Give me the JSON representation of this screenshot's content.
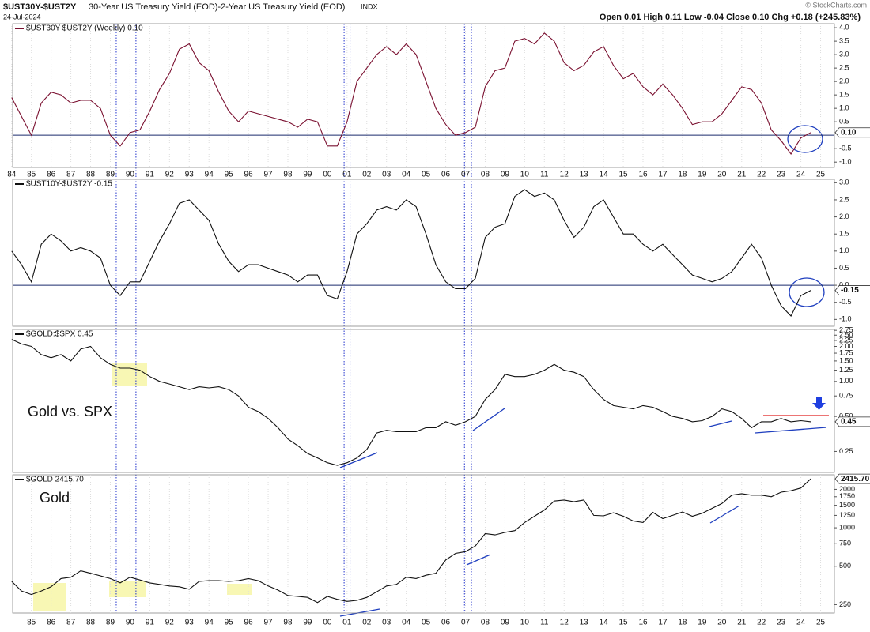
{
  "header": {
    "symbol": "$UST30Y-$UST2Y",
    "description": "30-Year US Treasury Yield (EOD)-2-Year US Treasury Yield (EOD)",
    "exchange": "INDX",
    "date": "24-Jul-2024",
    "quote": "Open 0.01 High 0.11 Low -0.04 Close 0.10 Chg +0.18 (+245.83%)",
    "credit": "© StockCharts.com"
  },
  "highlight_dates": [
    1989.3,
    1990.3,
    2000.85,
    2001.15,
    2006.95,
    2007.3
  ],
  "chart_data": [
    {
      "type": "line",
      "title": "$UST30Y-$UST2Y (Weekly) 0.10",
      "color": "#7a1030",
      "reference_line": 0,
      "last_value_label": "0.10",
      "log_scale": false,
      "grid": true,
      "x": [
        1984,
        1984.5,
        1985,
        1985.5,
        1986,
        1986.5,
        1987,
        1987.5,
        1988,
        1988.5,
        1989,
        1989.5,
        1990,
        1990.5,
        1991,
        1991.5,
        1992,
        1992.5,
        1993,
        1993.5,
        1994,
        1994.5,
        1995,
        1995.5,
        1996,
        1996.5,
        1997,
        1997.5,
        1998,
        1998.5,
        1999,
        1999.5,
        2000,
        2000.5,
        2001,
        2001.5,
        2002,
        2002.5,
        2003,
        2003.5,
        2004,
        2004.5,
        2005,
        2005.5,
        2006,
        2006.5,
        2007,
        2007.5,
        2008,
        2008.5,
        2009,
        2009.5,
        2010,
        2010.5,
        2011,
        2011.5,
        2012,
        2012.5,
        2013,
        2013.5,
        2014,
        2014.5,
        2015,
        2015.5,
        2016,
        2016.5,
        2017,
        2017.5,
        2018,
        2018.5,
        2019,
        2019.5,
        2020,
        2020.5,
        2021,
        2021.5,
        2022,
        2022.5,
        2023,
        2023.5,
        2024,
        2024.5
      ],
      "values": [
        1.4,
        0.7,
        0.0,
        1.2,
        1.6,
        1.5,
        1.2,
        1.3,
        1.3,
        1.0,
        0.0,
        -0.4,
        0.1,
        0.2,
        0.9,
        1.7,
        2.3,
        3.2,
        3.4,
        2.7,
        2.4,
        1.6,
        0.9,
        0.5,
        0.9,
        0.8,
        0.7,
        0.6,
        0.5,
        0.3,
        0.6,
        0.5,
        -0.4,
        -0.4,
        0.5,
        2.0,
        2.5,
        3.0,
        3.3,
        3.0,
        3.4,
        3.0,
        2.0,
        1.0,
        0.4,
        0.0,
        0.1,
        0.3,
        1.8,
        2.4,
        2.5,
        3.5,
        3.6,
        3.4,
        3.8,
        3.5,
        2.7,
        2.4,
        2.6,
        3.1,
        3.3,
        2.6,
        2.1,
        2.3,
        1.8,
        1.5,
        1.9,
        1.5,
        1.0,
        0.4,
        0.5,
        0.5,
        0.8,
        1.3,
        1.8,
        1.7,
        1.2,
        0.2,
        -0.2,
        -0.7,
        -0.1,
        0.1
      ],
      "xlim": [
        1984.05,
        2025.7
      ],
      "ylim": [
        -1.2,
        4.15
      ],
      "yticks": [
        {
          "value": 4,
          "label": "4.0"
        },
        3.5,
        {
          "value": 3,
          "label": "3.0"
        },
        2.5,
        {
          "value": 2,
          "label": "2.0"
        },
        1.5,
        {
          "value": 1,
          "label": "1.0"
        },
        0.5,
        -0.5,
        {
          "value": -1,
          "label": "-1.0"
        }
      ],
      "xticks": [
        {
          "value": 1984,
          "label": "84"
        },
        {
          "value": 1985,
          "label": "85"
        },
        {
          "value": 1986,
          "label": "86"
        },
        {
          "value": 1987,
          "label": "87"
        },
        {
          "value": 1988,
          "label": "88"
        },
        {
          "value": 1989,
          "label": "89"
        },
        {
          "value": 1990,
          "label": "90"
        },
        {
          "value": 1991,
          "label": "91"
        },
        {
          "value": 1992,
          "label": "92"
        },
        {
          "value": 1993,
          "label": "93"
        },
        {
          "value": 1994,
          "label": "94"
        },
        {
          "value": 1995,
          "label": "95"
        },
        {
          "value": 1996,
          "label": "96"
        },
        {
          "value": 1997,
          "label": "97"
        },
        {
          "value": 1998,
          "label": "98"
        },
        {
          "value": 1999,
          "label": "99"
        },
        {
          "value": 2000,
          "label": "00"
        },
        {
          "value": 2001,
          "label": "01"
        },
        {
          "value": 2002,
          "label": "02"
        },
        {
          "value": 2003,
          "label": "03"
        },
        {
          "value": 2004,
          "label": "04"
        },
        {
          "value": 2005,
          "label": "05"
        },
        {
          "value": 2006,
          "label": "06"
        },
        {
          "value": 2007,
          "label": "07"
        },
        {
          "value": 2008,
          "label": "08"
        },
        {
          "value": 2009,
          "label": "09"
        },
        {
          "value": 2010,
          "label": "10"
        },
        {
          "value": 2011,
          "label": "11"
        },
        {
          "value": 2012,
          "label": "12"
        },
        {
          "value": 2013,
          "label": "13"
        },
        {
          "value": 2014,
          "label": "14"
        },
        {
          "value": 2015,
          "label": "15"
        },
        {
          "value": 2016,
          "label": "16"
        },
        {
          "value": 2017,
          "label": "17"
        },
        {
          "value": 2018,
          "label": "18"
        },
        {
          "value": 2019,
          "label": "19"
        },
        {
          "value": 2020,
          "label": "20"
        },
        {
          "value": 2021,
          "label": "21"
        },
        {
          "value": 2022,
          "label": "22"
        },
        {
          "value": 2023,
          "label": "23"
        },
        {
          "value": 2024,
          "label": "24"
        },
        {
          "value": 2025,
          "label": "25"
        }
      ]
    },
    {
      "type": "line",
      "title": "$UST10Y-$UST2Y -0.15",
      "color": "#111111",
      "reference_line": 0,
      "last_value_label": "-0.15",
      "log_scale": false,
      "x": [
        1984,
        1984.5,
        1985,
        1985.5,
        1986,
        1986.5,
        1987,
        1987.5,
        1988,
        1988.5,
        1989,
        1989.5,
        1990,
        1990.5,
        1991,
        1991.5,
        1992,
        1992.5,
        1993,
        1993.5,
        1994,
        1994.5,
        1995,
        1995.5,
        1996,
        1996.5,
        1997,
        1997.5,
        1998,
        1998.5,
        1999,
        1999.5,
        2000,
        2000.5,
        2001,
        2001.5,
        2002,
        2002.5,
        2003,
        2003.5,
        2004,
        2004.5,
        2005,
        2005.5,
        2006,
        2006.5,
        2007,
        2007.5,
        2008,
        2008.5,
        2009,
        2009.5,
        2010,
        2010.5,
        2011,
        2011.5,
        2012,
        2012.5,
        2013,
        2013.5,
        2014,
        2014.5,
        2015,
        2015.5,
        2016,
        2016.5,
        2017,
        2017.5,
        2018,
        2018.5,
        2019,
        2019.5,
        2020,
        2020.5,
        2021,
        2021.5,
        2022,
        2022.5,
        2023,
        2023.5,
        2024,
        2024.5
      ],
      "values": [
        1.0,
        0.6,
        0.1,
        1.2,
        1.5,
        1.3,
        1.0,
        1.1,
        1.0,
        0.8,
        0.0,
        -0.3,
        0.1,
        0.1,
        0.7,
        1.3,
        1.8,
        2.4,
        2.5,
        2.2,
        1.9,
        1.2,
        0.7,
        0.4,
        0.6,
        0.6,
        0.5,
        0.4,
        0.3,
        0.1,
        0.3,
        0.3,
        -0.3,
        -0.4,
        0.4,
        1.5,
        1.8,
        2.2,
        2.3,
        2.2,
        2.5,
        2.3,
        1.5,
        0.6,
        0.1,
        -0.1,
        -0.1,
        0.2,
        1.4,
        1.7,
        1.8,
        2.6,
        2.8,
        2.6,
        2.7,
        2.5,
        1.9,
        1.4,
        1.7,
        2.3,
        2.5,
        2.0,
        1.5,
        1.5,
        1.2,
        1.0,
        1.2,
        0.9,
        0.6,
        0.3,
        0.2,
        0.1,
        0.2,
        0.4,
        0.8,
        1.2,
        0.8,
        0.0,
        -0.6,
        -0.9,
        -0.3,
        -0.15
      ],
      "xlim": [
        1984.05,
        2025.7
      ],
      "ylim": [
        -1.2,
        3.1
      ],
      "yticks": [
        {
          "value": 3,
          "label": "3.0"
        },
        2.5,
        {
          "value": 2,
          "label": "2.0"
        },
        1.5,
        {
          "value": 1,
          "label": "1.0"
        },
        0.5,
        {
          "value": 0,
          "label": "0.0"
        },
        -0.5,
        {
          "value": -1,
          "label": "-1.0"
        }
      ]
    },
    {
      "type": "line",
      "title": "$GOLD:$SPX 0.45",
      "annotation": "Gold vs. SPX",
      "color": "#111111",
      "last_value_label": "0.45",
      "log_scale": true,
      "x": [
        1984,
        1984.5,
        1985,
        1985.5,
        1986,
        1986.5,
        1987,
        1987.5,
        1988,
        1988.5,
        1989,
        1989.5,
        1990,
        1990.5,
        1991,
        1991.5,
        1992,
        1992.5,
        1993,
        1993.5,
        1994,
        1994.5,
        1995,
        1995.5,
        1996,
        1996.5,
        1997,
        1997.5,
        1998,
        1998.5,
        1999,
        1999.5,
        2000,
        2000.5,
        2001,
        2001.5,
        2002,
        2002.5,
        2003,
        2003.5,
        2004,
        2004.5,
        2005,
        2005.5,
        2006,
        2006.5,
        2007,
        2007.5,
        2008,
        2008.5,
        2009,
        2009.5,
        2010,
        2010.5,
        2011,
        2011.5,
        2012,
        2012.5,
        2013,
        2013.5,
        2014,
        2014.5,
        2015,
        2015.5,
        2016,
        2016.5,
        2017,
        2017.5,
        2018,
        2018.5,
        2019,
        2019.5,
        2020,
        2020.5,
        2021,
        2021.5,
        2022,
        2022.5,
        2023,
        2023.5,
        2024,
        2024.5
      ],
      "values": [
        2.3,
        2.1,
        2.0,
        1.7,
        1.6,
        1.7,
        1.5,
        1.9,
        2.0,
        1.6,
        1.4,
        1.3,
        1.3,
        1.25,
        1.1,
        1.0,
        0.95,
        0.9,
        0.85,
        0.9,
        0.88,
        0.9,
        0.85,
        0.75,
        0.6,
        0.55,
        0.48,
        0.4,
        0.32,
        0.28,
        0.24,
        0.22,
        0.2,
        0.19,
        0.2,
        0.22,
        0.26,
        0.36,
        0.38,
        0.37,
        0.37,
        0.37,
        0.4,
        0.4,
        0.45,
        0.42,
        0.45,
        0.5,
        0.7,
        0.85,
        1.15,
        1.1,
        1.1,
        1.15,
        1.25,
        1.4,
        1.25,
        1.2,
        1.1,
        0.85,
        0.7,
        0.62,
        0.6,
        0.58,
        0.62,
        0.6,
        0.55,
        0.5,
        0.48,
        0.45,
        0.46,
        0.5,
        0.58,
        0.55,
        0.48,
        0.4,
        0.45,
        0.45,
        0.48,
        0.45,
        0.46,
        0.45
      ],
      "xlim": [
        1984.05,
        2025.7
      ],
      "ylim": [
        0.165,
        2.8
      ],
      "yticks": [
        2.75,
        {
          "value": 2.5,
          "label": "2.50"
        },
        2.25,
        {
          "value": 2,
          "label": "2.00"
        },
        1.75,
        {
          "value": 1.5,
          "label": "1.50"
        },
        1.25,
        {
          "value": 1,
          "label": "1.00"
        },
        0.75,
        {
          "value": 0.5,
          "label": "0.50"
        },
        0.25
      ]
    },
    {
      "type": "line",
      "title": "$GOLD 2415.70",
      "annotation": "Gold",
      "color": "#111111",
      "last_value_label": "2415.70",
      "log_scale": true,
      "grid": true,
      "x": [
        1984,
        1984.5,
        1985,
        1985.5,
        1986,
        1986.5,
        1987,
        1987.5,
        1988,
        1988.5,
        1989,
        1989.5,
        1990,
        1990.5,
        1991,
        1991.5,
        1992,
        1992.5,
        1993,
        1993.5,
        1994,
        1994.5,
        1995,
        1995.5,
        1996,
        1996.5,
        1997,
        1997.5,
        1998,
        1998.5,
        1999,
        1999.5,
        2000,
        2000.5,
        2001,
        2001.5,
        2002,
        2002.5,
        2003,
        2003.5,
        2004,
        2004.5,
        2005,
        2005.5,
        2006,
        2006.5,
        2007,
        2007.5,
        2008,
        2008.5,
        2009,
        2009.5,
        2010,
        2010.5,
        2011,
        2011.5,
        2012,
        2012.5,
        2013,
        2013.5,
        2014,
        2014.5,
        2015,
        2015.5,
        2016,
        2016.5,
        2017,
        2017.5,
        2018,
        2018.5,
        2019,
        2019.5,
        2020,
        2020.5,
        2021,
        2021.5,
        2022,
        2022.5,
        2023,
        2023.5,
        2024,
        2024.5
      ],
      "values": [
        380,
        320,
        300,
        320,
        345,
        400,
        410,
        460,
        440,
        420,
        400,
        370,
        410,
        390,
        370,
        360,
        350,
        345,
        330,
        380,
        385,
        385,
        380,
        385,
        400,
        385,
        350,
        325,
        295,
        290,
        285,
        260,
        290,
        275,
        265,
        270,
        285,
        315,
        350,
        360,
        410,
        400,
        425,
        440,
        560,
        630,
        650,
        720,
        900,
        880,
        920,
        950,
        1100,
        1230,
        1380,
        1620,
        1650,
        1600,
        1650,
        1250,
        1240,
        1310,
        1230,
        1130,
        1100,
        1320,
        1180,
        1250,
        1330,
        1230,
        1300,
        1420,
        1550,
        1800,
        1850,
        1800,
        1800,
        1750,
        1900,
        1950,
        2050,
        2415.7
      ],
      "xlim": [
        1984.05,
        2025.7
      ],
      "ylim": [
        215,
        2600
      ],
      "yticks": [
        2000,
        1750,
        1500,
        1250,
        1000,
        750,
        500,
        250
      ],
      "xticks": [
        {
          "value": 1985,
          "label": "85"
        },
        {
          "value": 1986,
          "label": "86"
        },
        {
          "value": 1987,
          "label": "87"
        },
        {
          "value": 1988,
          "label": "88"
        },
        {
          "value": 1989,
          "label": "89"
        },
        {
          "value": 1990,
          "label": "90"
        },
        {
          "value": 1991,
          "label": "91"
        },
        {
          "value": 1992,
          "label": "92"
        },
        {
          "value": 1993,
          "label": "93"
        },
        {
          "value": 1994,
          "label": "94"
        },
        {
          "value": 1995,
          "label": "95"
        },
        {
          "value": 1996,
          "label": "96"
        },
        {
          "value": 1997,
          "label": "97"
        },
        {
          "value": 1998,
          "label": "98"
        },
        {
          "value": 1999,
          "label": "99"
        },
        {
          "value": 2000,
          "label": "00"
        },
        {
          "value": 2001,
          "label": "01"
        },
        {
          "value": 2002,
          "label": "02"
        },
        {
          "value": 2003,
          "label": "03"
        },
        {
          "value": 2004,
          "label": "04"
        },
        {
          "value": 2005,
          "label": "05"
        },
        {
          "value": 2006,
          "label": "06"
        },
        {
          "value": 2007,
          "label": "07"
        },
        {
          "value": 2008,
          "label": "08"
        },
        {
          "value": 2009,
          "label": "09"
        },
        {
          "value": 2010,
          "label": "10"
        },
        {
          "value": 2011,
          "label": "11"
        },
        {
          "value": 2012,
          "label": "12"
        },
        {
          "value": 2013,
          "label": "13"
        },
        {
          "value": 2014,
          "label": "14"
        },
        {
          "value": 2015,
          "label": "15"
        },
        {
          "value": 2016,
          "label": "16"
        },
        {
          "value": 2017,
          "label": "17"
        },
        {
          "value": 2018,
          "label": "18"
        },
        {
          "value": 2019,
          "label": "19"
        },
        {
          "value": 2020,
          "label": "20"
        },
        {
          "value": 2021,
          "label": "21"
        },
        {
          "value": 2022,
          "label": "22"
        },
        {
          "value": 2023,
          "label": "23"
        },
        {
          "value": 2024,
          "label": "24"
        },
        {
          "value": 2025,
          "label": "25"
        }
      ]
    }
  ]
}
